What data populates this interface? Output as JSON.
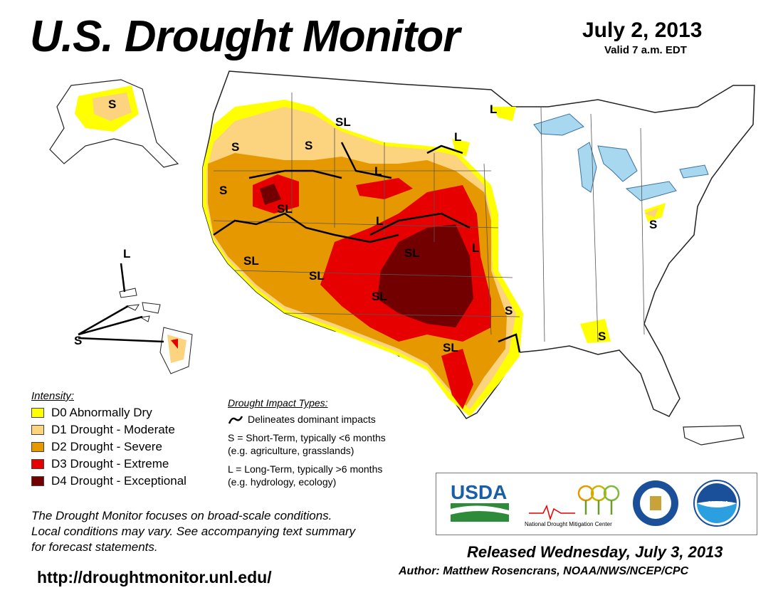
{
  "header": {
    "title": "U.S. Drought Monitor",
    "date": "July 2, 2013",
    "valid": "Valid 7 a.m. EDT"
  },
  "map": {
    "region_labels": [
      "S",
      "SL",
      "S",
      "L",
      "L",
      "S",
      "L",
      "S",
      "SL",
      "L",
      "L",
      "SL",
      "SL",
      "SL",
      "SL",
      "S",
      "S",
      "SL",
      "S",
      "L",
      "S"
    ],
    "colors": {
      "d0": "#ffff00",
      "d1": "#fcd37f",
      "d2": "#e69800",
      "d3": "#e60000",
      "d4": "#730000",
      "water": "#a8d8f0",
      "land": "#ffffff"
    }
  },
  "legend": {
    "title": "Intensity:",
    "items": [
      {
        "label": "D0 Abnormally Dry",
        "color": "#ffff00"
      },
      {
        "label": "D1 Drought - Moderate",
        "color": "#fcd37f"
      },
      {
        "label": "D2 Drought - Severe",
        "color": "#e69800"
      },
      {
        "label": "D3 Drought - Extreme",
        "color": "#e60000"
      },
      {
        "label": "D4 Drought - Exceptional",
        "color": "#730000"
      }
    ]
  },
  "impact": {
    "title": "Drought Impact Types:",
    "delineates": "Delineates dominant impacts",
    "short_line1": "S = Short-Term, typically <6 months",
    "short_line2": "(e.g. agriculture, grasslands)",
    "long_line1": "L = Long-Term, typically >6 months",
    "long_line2": "(e.g. hydrology, ecology)"
  },
  "footer": {
    "note_line1": "The Drought Monitor focuses on broad-scale conditions.",
    "note_line2": "Local conditions may vary. See accompanying text summary",
    "note_line3": "for forecast statements.",
    "url": "http://droughtmonitor.unl.edu/",
    "released": "Released Wednesday, July 3, 2013",
    "author": "Author: Matthew Rosencrans, NOAA/NWS/NCEP/CPC"
  },
  "logos": {
    "usda": "USDA",
    "ndmc": "National Drought Mitigation Center",
    "noaa": "NOAA",
    "usda_color": "#1a5ea8",
    "usda_green": "#2e8b3a"
  }
}
